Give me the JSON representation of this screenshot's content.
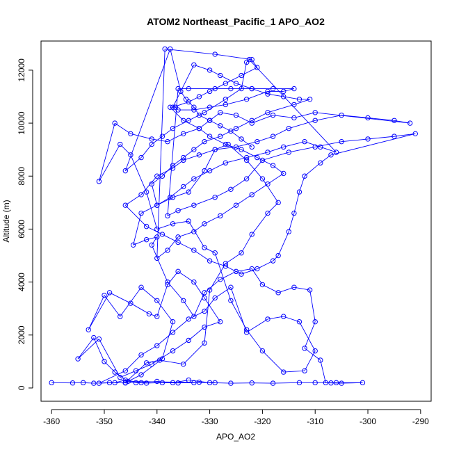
{
  "chart_data": {
    "type": "line",
    "title": "ATOM2 Northeast_Pacific_1 APO_AO2",
    "xlabel": "APO_AO2",
    "ylabel": "Altitude (m)",
    "xlim": [
      -362,
      -288
    ],
    "ylim": [
      -500,
      13100
    ],
    "xticks": [
      -360,
      -350,
      -340,
      -330,
      -320,
      -310,
      -300,
      -290
    ],
    "yticks": [
      0,
      2000,
      4000,
      6000,
      8000,
      10000,
      12000
    ],
    "grid": false,
    "legend": "none",
    "color": "#0000ff",
    "marker": "open-circle",
    "series": [
      {
        "values": [
          [
            -360,
            200
          ],
          [
            -356,
            190
          ],
          [
            -354,
            200
          ],
          [
            -352,
            180
          ],
          [
            -349,
            200
          ],
          [
            -346,
            190
          ],
          [
            -344,
            200
          ],
          [
            -342,
            185
          ],
          [
            -339,
            200
          ],
          [
            -336,
            190
          ],
          [
            -333,
            200
          ],
          [
            -332,
            220
          ],
          [
            -329,
            200
          ],
          [
            -345.5,
            250
          ],
          [
            -348,
            600
          ],
          [
            -350,
            1000
          ],
          [
            -352,
            1900
          ],
          [
            -355,
            1100
          ],
          [
            -351,
            1850
          ],
          [
            -347,
            400
          ],
          [
            -344,
            650
          ],
          [
            -341,
            900
          ],
          [
            -337,
            1400
          ],
          [
            -334,
            1800
          ],
          [
            -331,
            2300
          ],
          [
            -328,
            2500
          ],
          [
            -331,
            3400
          ],
          [
            -333,
            4000
          ],
          [
            -336,
            4400
          ],
          [
            -338,
            3900
          ],
          [
            -340,
            2700
          ],
          [
            -341.5,
            2800
          ],
          [
            -345,
            3200
          ],
          [
            -349,
            3600
          ],
          [
            -353,
            2200
          ],
          [
            -350,
            3500
          ],
          [
            -347,
            2700
          ],
          [
            -343,
            3800
          ],
          [
            -340,
            3300
          ],
          [
            -337,
            2500
          ],
          [
            -339,
            1100
          ],
          [
            -343,
            500
          ],
          [
            -346,
            200
          ],
          [
            -342,
            950
          ],
          [
            -339.5,
            1050
          ],
          [
            -335,
            900
          ],
          [
            -331,
            1700
          ],
          [
            -330,
            3700
          ],
          [
            -327,
            4700
          ],
          [
            -324,
            5100
          ],
          [
            -322,
            5800
          ],
          [
            -319,
            6600
          ],
          [
            -317,
            7000
          ],
          [
            -320,
            7900
          ],
          [
            -323,
            8600
          ],
          [
            -326.5,
            9200
          ],
          [
            -329,
            9000
          ],
          [
            -331,
            8200
          ],
          [
            -334,
            7400
          ],
          [
            -337,
            7200
          ],
          [
            -340,
            6900
          ],
          [
            -343,
            6600
          ],
          [
            -344.5,
            5400
          ],
          [
            -342,
            5600
          ],
          [
            -340,
            5700
          ],
          [
            -341,
            5400
          ],
          [
            -338,
            4000
          ],
          [
            -335,
            3300
          ],
          [
            -333,
            2700
          ],
          [
            -331,
            3600
          ],
          [
            -328,
            4100
          ],
          [
            -325,
            4400
          ],
          [
            -322,
            4500
          ],
          [
            -320,
            3900
          ],
          [
            -317,
            3600
          ],
          [
            -314,
            3800
          ],
          [
            -311,
            3700
          ],
          [
            -310,
            2500
          ],
          [
            -312,
            1500
          ],
          [
            -309,
            1050
          ],
          [
            -308,
            200
          ],
          [
            -307,
            190
          ],
          [
            -305,
            180
          ],
          [
            -301,
            200
          ],
          [
            -306,
            200
          ],
          [
            -310,
            200
          ],
          [
            -313,
            200
          ],
          [
            -318,
            180
          ],
          [
            -322,
            190
          ],
          [
            -326,
            180
          ],
          [
            -330,
            200
          ],
          [
            -334,
            300
          ],
          [
            -337,
            200
          ],
          [
            -340,
            250
          ],
          [
            -343,
            200
          ],
          [
            -346,
            300
          ],
          [
            -348,
            200
          ],
          [
            -351,
            180
          ],
          [
            -346,
            650
          ],
          [
            -343,
            1250
          ],
          [
            -340,
            1600
          ],
          [
            -337,
            2100
          ],
          [
            -334,
            2600
          ],
          [
            -331,
            2900
          ],
          [
            -329,
            3400
          ],
          [
            -326,
            3800
          ],
          [
            -323,
            2100
          ],
          [
            -319,
            2600
          ],
          [
            -316,
            2700
          ],
          [
            -313,
            2500
          ],
          [
            -310,
            1400
          ],
          [
            -312,
            650
          ],
          [
            -316,
            600
          ],
          [
            -320,
            1400
          ],
          [
            -323,
            2200
          ],
          [
            -326,
            3300
          ],
          [
            -329,
            5100
          ],
          [
            -331,
            5300
          ],
          [
            -334,
            6300
          ],
          [
            -337,
            6200
          ],
          [
            -340,
            6000
          ],
          [
            -342,
            7400
          ],
          [
            -345,
            8800
          ],
          [
            -347,
            9200
          ],
          [
            -351,
            7800
          ],
          [
            -348,
            10000
          ],
          [
            -345,
            9600
          ],
          [
            -341,
            9400
          ],
          [
            -338,
            9300
          ],
          [
            -335,
            9600
          ],
          [
            -332,
            9800
          ],
          [
            -330,
            10100
          ],
          [
            -328,
            10400
          ],
          [
            -325,
            10300
          ],
          [
            -322,
            10000
          ],
          [
            -318,
            10300
          ],
          [
            -314,
            10200
          ],
          [
            -310,
            10400
          ],
          [
            -292,
            10000
          ],
          [
            -295,
            10100
          ],
          [
            -300,
            10200
          ],
          [
            -305,
            10300
          ],
          [
            -310,
            10100
          ],
          [
            -315,
            9800
          ],
          [
            -318,
            9500
          ],
          [
            -321,
            9300
          ],
          [
            -325,
            9100
          ],
          [
            -329,
            9000
          ],
          [
            -332,
            8800
          ],
          [
            -335,
            8600
          ],
          [
            -337,
            8300
          ],
          [
            -340,
            8000
          ],
          [
            -343,
            7300
          ],
          [
            -346,
            6900
          ],
          [
            -342,
            6100
          ],
          [
            -339,
            5800
          ],
          [
            -336,
            5500
          ],
          [
            -333,
            5200
          ],
          [
            -330,
            4800
          ],
          [
            -327,
            4600
          ],
          [
            -324,
            4300
          ],
          [
            -321,
            4500
          ],
          [
            -318,
            4800
          ],
          [
            -317,
            5000
          ],
          [
            -315,
            5900
          ],
          [
            -314,
            6600
          ],
          [
            -313,
            7400
          ],
          [
            -312,
            8000
          ],
          [
            -309,
            8500
          ],
          [
            -307,
            8800
          ],
          [
            -291,
            9600
          ],
          [
            -295,
            9500
          ],
          [
            -300,
            9400
          ],
          [
            -305,
            9300
          ],
          [
            -310,
            9100
          ],
          [
            -315,
            8900
          ],
          [
            -320,
            8600
          ],
          [
            -323,
            7900
          ],
          [
            -326,
            7500
          ],
          [
            -329,
            7200
          ],
          [
            -333,
            6900
          ],
          [
            -336,
            6700
          ],
          [
            -338,
            6500
          ],
          [
            -336,
            11300
          ],
          [
            -334,
            11300
          ],
          [
            -329,
            11300
          ],
          [
            -326,
            11300
          ],
          [
            -322,
            11300
          ],
          [
            -318,
            11300
          ],
          [
            -314,
            11300
          ],
          [
            -316,
            11200
          ],
          [
            -319,
            11200
          ],
          [
            -323,
            10900
          ],
          [
            -327,
            10700
          ],
          [
            -330,
            10600
          ],
          [
            -333,
            10500
          ],
          [
            -336,
            10500
          ],
          [
            -336.5,
            10600
          ],
          [
            -337.5,
            10600
          ],
          [
            -335,
            10100
          ],
          [
            -332,
            9800
          ],
          [
            -330,
            9500
          ],
          [
            -327,
            9200
          ],
          [
            -324,
            9000
          ],
          [
            -321,
            8700
          ],
          [
            -318,
            8400
          ],
          [
            -316,
            8100
          ],
          [
            -319,
            7700
          ],
          [
            -322,
            7300
          ],
          [
            -325,
            6900
          ],
          [
            -328,
            6500
          ],
          [
            -331,
            6200
          ],
          [
            -333,
            5900
          ],
          [
            -336,
            5700
          ],
          [
            -338,
            5200
          ],
          [
            -340,
            4900
          ],
          [
            -338.5,
            12800
          ],
          [
            -329,
            12600
          ],
          [
            -322,
            12400
          ],
          [
            -321,
            12100
          ],
          [
            -324,
            11800
          ],
          [
            -327,
            11500
          ],
          [
            -330,
            11200
          ],
          [
            -332,
            11000
          ],
          [
            -334,
            10800
          ],
          [
            -337,
            10600
          ],
          [
            -333,
            12200
          ],
          [
            -330,
            12000
          ],
          [
            -328,
            11800
          ],
          [
            -325,
            11500
          ],
          [
            -322,
            11300
          ],
          [
            -319,
            11100
          ],
          [
            -316,
            11000
          ],
          [
            -313,
            10900
          ],
          [
            -311,
            10900
          ],
          [
            -314,
            10700
          ],
          [
            -319,
            10400
          ],
          [
            -322,
            10100
          ],
          [
            -325,
            9800
          ],
          [
            -328,
            9500
          ],
          [
            -331,
            9300
          ],
          [
            -333,
            9000
          ],
          [
            -335,
            8700
          ],
          [
            -337,
            8400
          ],
          [
            -339,
            8000
          ],
          [
            -341,
            7700
          ],
          [
            -340,
            6900
          ],
          [
            -337.5,
            7200
          ],
          [
            -335,
            7600
          ],
          [
            -333,
            7900
          ],
          [
            -330,
            8200
          ],
          [
            -327,
            8500
          ],
          [
            -323,
            8700
          ],
          [
            -319,
            8900
          ],
          [
            -316,
            9100
          ],
          [
            -312,
            9300
          ],
          [
            -309,
            9100
          ],
          [
            -306,
            8900
          ],
          [
            -322.5,
            12400
          ],
          [
            -323,
            12300
          ],
          [
            -324,
            11300
          ],
          [
            -327,
            10900
          ],
          [
            -331,
            10400
          ],
          [
            -334,
            10100
          ],
          [
            -337,
            9800
          ],
          [
            -339,
            9500
          ],
          [
            -341,
            9200
          ],
          [
            -343,
            8700
          ],
          [
            -346,
            8200
          ],
          [
            -337.5,
            12800
          ],
          [
            -335.5,
            11200
          ],
          [
            -334.5,
            10900
          ],
          [
            -333,
            10600
          ],
          [
            -332,
            10300
          ],
          [
            -330,
            10100
          ],
          [
            -328,
            9900
          ],
          [
            -326,
            9700
          ],
          [
            -324,
            9400
          ],
          [
            -322,
            9100
          ]
        ]
      }
    ]
  }
}
